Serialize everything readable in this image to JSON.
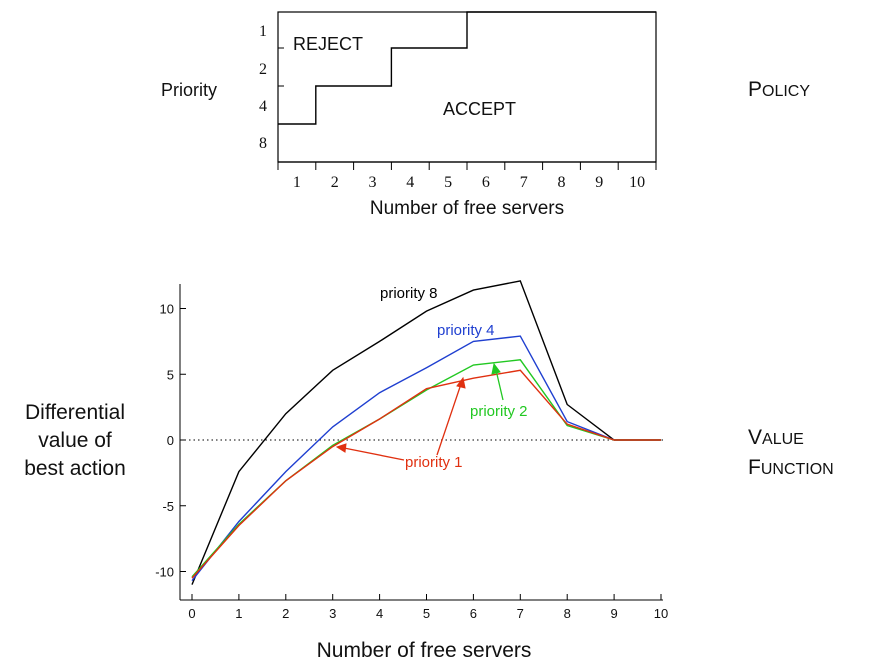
{
  "chart_data": [
    {
      "type": "step",
      "row_label": "Priority",
      "side_label_small_caps": "POLICY",
      "row_ticks": [
        "1",
        "2",
        "4",
        "8"
      ],
      "x_tick_labels": [
        "1",
        "2",
        "3",
        "4",
        "5",
        "6",
        "7",
        "8",
        "9",
        "10"
      ],
      "xlabel": "Number of free servers",
      "region_labels": {
        "reject": "REJECT",
        "accept": "ACCEPT"
      },
      "boundary": [
        {
          "priority": "8",
          "reject_if_free_servers_at_most": 1
        },
        {
          "priority": "4",
          "reject_if_free_servers_at_most": 3
        },
        {
          "priority": "2",
          "reject_if_free_servers_at_most": 5
        },
        {
          "priority": "1",
          "reject_if_free_servers_at_most": 10
        }
      ]
    },
    {
      "type": "line",
      "ylabel_lines": [
        "Differential",
        "value of",
        "best action"
      ],
      "side_label_lines": [
        "VALUE",
        "FUNCTION"
      ],
      "xlabel": "Number of free servers",
      "x": [
        0,
        1,
        2,
        3,
        4,
        5,
        6,
        7,
        8,
        9,
        10
      ],
      "xlim": [
        0,
        10
      ],
      "ylim": [
        -12,
        12.2
      ],
      "x_ticks": [
        "0",
        "1",
        "2",
        "3",
        "4",
        "5",
        "6",
        "7",
        "8",
        "9",
        "10"
      ],
      "y_ticks": [
        {
          "label": "10",
          "value": 10
        },
        {
          "label": "5",
          "value": 5
        },
        {
          "label": "0",
          "value": 0
        },
        {
          "label": "-5",
          "value": -5
        },
        {
          "label": "-10",
          "value": -10
        }
      ],
      "zero_line": "dotted",
      "series": [
        {
          "name": "priority 8",
          "color": "#000000",
          "values": [
            -11.0,
            -2.4,
            2.0,
            5.3,
            7.5,
            9.8,
            11.4,
            12.1,
            2.7,
            0,
            0
          ]
        },
        {
          "name": "priority 4",
          "color": "#1f3fd0",
          "values": [
            -10.7,
            -6.2,
            -2.4,
            1.0,
            3.6,
            5.5,
            7.5,
            7.9,
            1.4,
            0,
            0
          ]
        },
        {
          "name": "priority 2",
          "color": "#22c822",
          "values": [
            -10.4,
            -6.4,
            -3.1,
            -0.4,
            1.6,
            3.8,
            5.7,
            6.1,
            1.1,
            0,
            0
          ]
        },
        {
          "name": "priority 1",
          "color": "#e03010",
          "values": [
            -10.5,
            -6.5,
            -3.1,
            -0.5,
            1.6,
            3.9,
            4.7,
            5.3,
            1.2,
            0,
            0
          ]
        }
      ]
    }
  ]
}
